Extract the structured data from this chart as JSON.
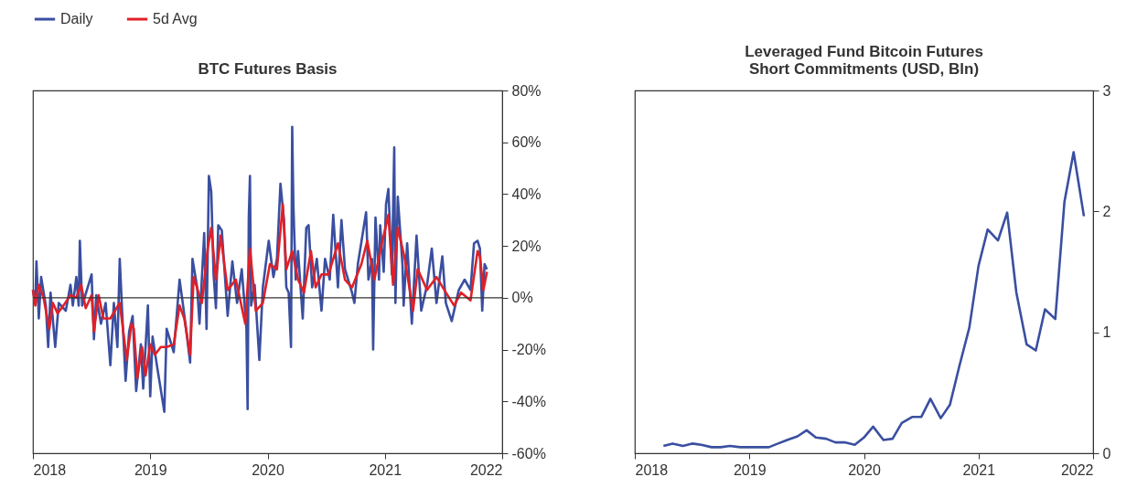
{
  "chart_data": [
    {
      "type": "line",
      "title": "BTC Futures Basis",
      "legend": "top",
      "grid": false,
      "xlim": [
        2018,
        2022
      ],
      "xticks": [
        2018,
        2019,
        2020,
        2021,
        2022
      ],
      "ylim": [
        -60,
        80
      ],
      "yticks": [
        {
          "value": -60,
          "label": "-60%"
        },
        {
          "value": -40,
          "label": "-40%"
        },
        {
          "value": -20,
          "label": "-20%"
        },
        {
          "value": 0,
          "label": "0%"
        },
        {
          "value": 20,
          "label": "20%"
        },
        {
          "value": 40,
          "label": "40%"
        },
        {
          "value": 60,
          "label": "60%"
        },
        {
          "value": 80,
          "label": "80%"
        }
      ],
      "ref_lines": [
        {
          "axis": "y",
          "value": 0,
          "color": "#333333"
        }
      ],
      "series": [
        {
          "name": "Daily",
          "color": "#3a4fa0",
          "x": [
            2018.0,
            2018.02,
            2018.03,
            2018.05,
            2018.07,
            2018.11,
            2018.13,
            2018.15,
            2018.19,
            2018.22,
            2018.28,
            2018.32,
            2018.34,
            2018.37,
            2018.39,
            2018.4,
            2018.42,
            2018.46,
            2018.5,
            2018.52,
            2018.54,
            2018.58,
            2018.62,
            2018.66,
            2018.69,
            2018.72,
            2018.74,
            2018.76,
            2018.79,
            2018.82,
            2018.85,
            2018.88,
            2018.92,
            2018.94,
            2018.98,
            2019.0,
            2019.02,
            2019.06,
            2019.12,
            2019.14,
            2019.2,
            2019.25,
            2019.28,
            2019.3,
            2019.34,
            2019.36,
            2019.4,
            2019.42,
            2019.46,
            2019.48,
            2019.5,
            2019.52,
            2019.54,
            2019.56,
            2019.58,
            2019.61,
            2019.66,
            2019.7,
            2019.74,
            2019.78,
            2019.82,
            2019.83,
            2019.84,
            2019.85,
            2019.86,
            2019.89,
            2019.93,
            2019.96,
            2020.01,
            2020.05,
            2020.08,
            2020.11,
            2020.14,
            2020.16,
            2020.18,
            2020.2,
            2020.21,
            2020.22,
            2020.24,
            2020.26,
            2020.3,
            2020.33,
            2020.35,
            2020.38,
            2020.42,
            2020.46,
            2020.49,
            2020.53,
            2020.56,
            2020.6,
            2020.63,
            2020.66,
            2020.72,
            2020.74,
            2020.77,
            2020.84,
            2020.86,
            2020.89,
            2020.9,
            2020.92,
            2020.95,
            2020.96,
            2020.99,
            2021.01,
            2021.03,
            2021.06,
            2021.08,
            2021.09,
            2021.11,
            2021.15,
            2021.16,
            2021.19,
            2021.23,
            2021.27,
            2021.31,
            2021.36,
            2021.4,
            2021.44,
            2021.49,
            2021.52,
            2021.57,
            2021.63,
            2021.68,
            2021.73,
            2021.76,
            2021.79,
            2021.81,
            2021.83,
            2021.85,
            2021.87
          ],
          "values": [
            3,
            -2,
            14,
            -8,
            8,
            -3,
            -19,
            2,
            -19,
            -2,
            -5,
            5,
            -3,
            8,
            -3,
            22,
            -3,
            3,
            9,
            -16,
            1,
            -10,
            -2,
            -26,
            -2,
            -19,
            15,
            -5,
            -32,
            -13,
            -7,
            -36,
            -18,
            -35,
            -3,
            -38,
            -15,
            -27,
            -44,
            -12,
            -21,
            7,
            -3,
            -10,
            -25,
            15,
            4,
            -10,
            25,
            -12,
            47,
            41,
            9,
            -4,
            28,
            26,
            -7,
            14,
            -2,
            11,
            -12,
            -43,
            31,
            47,
            -3,
            5,
            -24,
            4,
            22,
            8,
            15,
            44,
            30,
            4,
            2,
            -19,
            66,
            36,
            7,
            18,
            -8,
            27,
            28,
            4,
            15,
            -5,
            15,
            7,
            32,
            4,
            30,
            11,
            2,
            -2,
            13,
            33,
            7,
            15,
            -20,
            31,
            7,
            28,
            10,
            36,
            42,
            9,
            58,
            -2,
            39,
            13,
            -3,
            21,
            -10,
            24,
            -5,
            5,
            19,
            -2,
            16,
            -2,
            -9,
            3,
            7,
            3,
            21,
            22,
            19,
            -5,
            13,
            11
          ]
        },
        {
          "name": "5d Avg",
          "color": "#e02027",
          "x": [
            2018.0,
            2018.02,
            2018.05,
            2018.09,
            2018.14,
            2018.17,
            2018.21,
            2018.26,
            2018.32,
            2018.37,
            2018.41,
            2018.45,
            2018.5,
            2018.52,
            2018.56,
            2018.6,
            2018.66,
            2018.7,
            2018.74,
            2018.8,
            2018.84,
            2018.86,
            2018.89,
            2018.93,
            2018.96,
            2019.0,
            2019.04,
            2019.09,
            2019.14,
            2019.2,
            2019.25,
            2019.29,
            2019.34,
            2019.37,
            2019.44,
            2019.49,
            2019.52,
            2019.56,
            2019.6,
            2019.66,
            2019.73,
            2019.81,
            2019.85,
            2019.9,
            2019.96,
            2020.02,
            2020.08,
            2020.13,
            2020.16,
            2020.21,
            2020.26,
            2020.31,
            2020.37,
            2020.41,
            2020.46,
            2020.52,
            2020.6,
            2020.66,
            2020.72,
            2020.8,
            2020.85,
            2020.91,
            2020.97,
            2021.03,
            2021.07,
            2021.11,
            2021.17,
            2021.24,
            2021.28,
            2021.36,
            2021.44,
            2021.52,
            2021.59,
            2021.65,
            2021.73,
            2021.79,
            2021.81,
            2021.84,
            2021.87
          ],
          "values": [
            3,
            -3,
            5,
            0,
            -12,
            -2,
            -6,
            -3,
            1,
            0,
            5,
            -4,
            1,
            -13,
            1,
            -8,
            -8,
            -5,
            -2,
            -24,
            -10,
            -12,
            -31,
            -19,
            -30,
            -18,
            -22,
            -19,
            -19,
            -18,
            -3,
            -8,
            -22,
            8,
            -2,
            19,
            27,
            7,
            24,
            3,
            7,
            -10,
            19,
            -5,
            -2,
            13,
            11,
            36,
            11,
            18,
            7,
            2,
            18,
            4,
            9,
            9,
            21,
            7,
            4,
            13,
            22,
            7,
            20,
            32,
            5,
            27,
            15,
            -5,
            11,
            3,
            8,
            2,
            -3,
            2,
            -1,
            18,
            16,
            3,
            10
          ]
        }
      ]
    },
    {
      "type": "line",
      "title": "Leveraged Fund Bitcoin Futures\nShort Commitments (USD, Bln)",
      "grid": false,
      "xlim": [
        2018,
        2022
      ],
      "xticks": [
        2018,
        2019,
        2020,
        2021,
        2022
      ],
      "ylim": [
        0,
        3
      ],
      "yticks": [
        0,
        1,
        2,
        3
      ],
      "series": [
        {
          "color": "#3a4fa0",
          "x": [
            2018.25,
            2018.33,
            2018.42,
            2018.5,
            2018.58,
            2018.67,
            2018.75,
            2018.83,
            2018.92,
            2019.0,
            2019.08,
            2019.17,
            2019.25,
            2019.33,
            2019.42,
            2019.5,
            2019.58,
            2019.67,
            2019.75,
            2019.83,
            2019.92,
            2020.0,
            2020.08,
            2020.17,
            2020.25,
            2020.33,
            2020.42,
            2020.5,
            2020.58,
            2020.67,
            2020.75,
            2020.83,
            2020.92,
            2021.0,
            2021.08,
            2021.17,
            2021.25,
            2021.33,
            2021.42,
            2021.5,
            2021.58,
            2021.67,
            2021.75,
            2021.83,
            2021.92
          ],
          "values": [
            0.06,
            0.08,
            0.06,
            0.08,
            0.07,
            0.05,
            0.05,
            0.06,
            0.05,
            0.05,
            0.05,
            0.05,
            0.08,
            0.11,
            0.14,
            0.19,
            0.13,
            0.12,
            0.09,
            0.09,
            0.07,
            0.13,
            0.22,
            0.11,
            0.12,
            0.25,
            0.3,
            0.3,
            0.45,
            0.29,
            0.4,
            0.71,
            1.04,
            1.55,
            1.85,
            1.76,
            1.99,
            1.33,
            0.9,
            0.85,
            1.19,
            1.11,
            2.08,
            2.49,
            1.96
          ]
        }
      ]
    }
  ]
}
